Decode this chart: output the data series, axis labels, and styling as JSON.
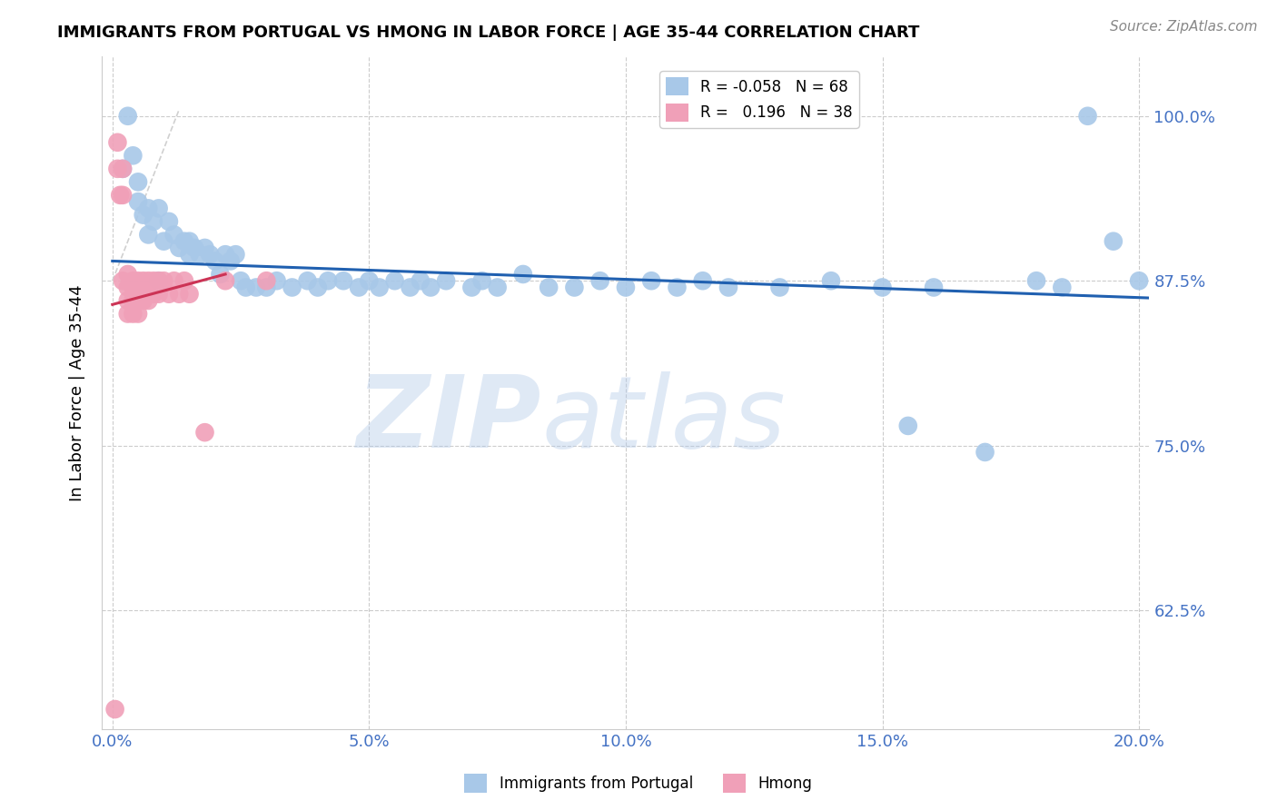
{
  "title": "IMMIGRANTS FROM PORTUGAL VS HMONG IN LABOR FORCE | AGE 35-44 CORRELATION CHART",
  "source": "Source: ZipAtlas.com",
  "ylabel": "In Labor Force | Age 35-44",
  "xlabel_ticks": [
    "0.0%",
    "5.0%",
    "10.0%",
    "15.0%",
    "20.0%"
  ],
  "xlabel_vals": [
    0.0,
    0.05,
    0.1,
    0.15,
    0.2
  ],
  "ylabel_ticks": [
    "62.5%",
    "75.0%",
    "87.5%",
    "100.0%"
  ],
  "ylabel_vals": [
    0.625,
    0.75,
    0.875,
    1.0
  ],
  "xlim": [
    -0.002,
    0.202
  ],
  "ylim": [
    0.535,
    1.045
  ],
  "legend_blue_r": "-0.058",
  "legend_blue_n": "68",
  "legend_pink_r": "0.196",
  "legend_pink_n": "38",
  "blue_color": "#a8c8e8",
  "pink_color": "#f0a0b8",
  "trend_blue_color": "#2060b0",
  "trend_pink_color": "#cc3355",
  "diag_color": "#d0d0d0",
  "blue_x": [
    0.002,
    0.003,
    0.004,
    0.005,
    0.005,
    0.006,
    0.007,
    0.007,
    0.008,
    0.009,
    0.009,
    0.01,
    0.011,
    0.012,
    0.013,
    0.014,
    0.015,
    0.015,
    0.016,
    0.017,
    0.018,
    0.019,
    0.02,
    0.021,
    0.022,
    0.023,
    0.024,
    0.025,
    0.026,
    0.028,
    0.03,
    0.032,
    0.035,
    0.038,
    0.04,
    0.042,
    0.045,
    0.048,
    0.05,
    0.052,
    0.055,
    0.058,
    0.06,
    0.062,
    0.065,
    0.07,
    0.072,
    0.075,
    0.08,
    0.085,
    0.09,
    0.095,
    0.1,
    0.105,
    0.11,
    0.115,
    0.12,
    0.13,
    0.14,
    0.15,
    0.155,
    0.16,
    0.17,
    0.18,
    0.185,
    0.19,
    0.195,
    0.2
  ],
  "blue_y": [
    0.96,
    1.0,
    0.97,
    0.935,
    0.95,
    0.925,
    0.91,
    0.93,
    0.92,
    0.93,
    0.875,
    0.905,
    0.92,
    0.91,
    0.9,
    0.905,
    0.895,
    0.905,
    0.9,
    0.895,
    0.9,
    0.895,
    0.89,
    0.88,
    0.895,
    0.89,
    0.895,
    0.875,
    0.87,
    0.87,
    0.87,
    0.875,
    0.87,
    0.875,
    0.87,
    0.875,
    0.875,
    0.87,
    0.875,
    0.87,
    0.875,
    0.87,
    0.875,
    0.87,
    0.875,
    0.87,
    0.875,
    0.87,
    0.88,
    0.87,
    0.87,
    0.875,
    0.87,
    0.875,
    0.87,
    0.875,
    0.87,
    0.87,
    0.875,
    0.87,
    0.765,
    0.87,
    0.745,
    0.875,
    0.87,
    1.0,
    0.905,
    0.875
  ],
  "pink_x": [
    0.0005,
    0.001,
    0.001,
    0.0015,
    0.002,
    0.002,
    0.002,
    0.003,
    0.003,
    0.003,
    0.003,
    0.004,
    0.004,
    0.004,
    0.004,
    0.005,
    0.005,
    0.005,
    0.005,
    0.006,
    0.006,
    0.006,
    0.007,
    0.007,
    0.007,
    0.008,
    0.008,
    0.009,
    0.009,
    0.01,
    0.011,
    0.012,
    0.013,
    0.014,
    0.015,
    0.018,
    0.022,
    0.03
  ],
  "pink_y": [
    0.55,
    0.98,
    0.96,
    0.94,
    0.96,
    0.875,
    0.94,
    0.88,
    0.87,
    0.86,
    0.85,
    0.875,
    0.87,
    0.86,
    0.85,
    0.875,
    0.87,
    0.86,
    0.85,
    0.875,
    0.87,
    0.86,
    0.875,
    0.87,
    0.86,
    0.875,
    0.865,
    0.875,
    0.865,
    0.875,
    0.865,
    0.875,
    0.865,
    0.875,
    0.865,
    0.76,
    0.875,
    0.875
  ],
  "blue_trend_x": [
    0.0,
    0.202
  ],
  "blue_trend_y": [
    0.89,
    0.862
  ],
  "pink_trend_x": [
    0.0,
    0.022
  ],
  "pink_trend_y": [
    0.857,
    0.88
  ]
}
